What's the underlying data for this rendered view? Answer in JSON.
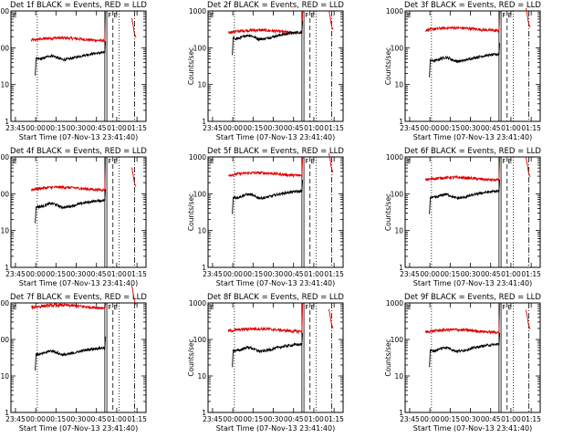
{
  "chart_data": {
    "type": "line",
    "layout": "3x3 grid",
    "y_scale": "log",
    "ylim": [
      1,
      1000
    ],
    "ylabel": "Counts/sec",
    "xlabel": "Start Time (07-Nov-13 23:41:40)",
    "x_tick_labels": [
      "23:45",
      "00:00",
      "00:15",
      "00:30",
      "00:45",
      "01:00",
      "01:15"
    ],
    "y_tick_labels": [
      "1",
      "10",
      "100",
      "1000"
    ],
    "xlim_minutes_from_start": [
      0,
      100
    ],
    "series_colors": {
      "events": "#000000",
      "lld": "#dd0000"
    },
    "annotation": "F E",
    "panels": [
      {
        "title": "Det 1f BLACK = Events, RED = LLD",
        "events_level": 50,
        "lld_level": 160
      },
      {
        "title": "Det 2f BLACK = Events, RED = LLD",
        "events_level": 180,
        "lld_level": 260
      },
      {
        "title": "Det 3f BLACK = Events, RED = LLD",
        "events_level": 45,
        "lld_level": 300
      },
      {
        "title": "Det 4f BLACK = Events, RED = LLD",
        "events_level": 45,
        "lld_level": 130
      },
      {
        "title": "Det 5f BLACK = Events, RED = LLD",
        "events_level": 80,
        "lld_level": 320
      },
      {
        "title": "Det 6f BLACK = Events, RED = LLD",
        "events_level": 80,
        "lld_level": 240
      },
      {
        "title": "Det 7f BLACK = Events, RED = LLD",
        "events_level": 40,
        "lld_level": 750
      },
      {
        "title": "Det 8f BLACK = Events, RED = LLD",
        "events_level": 50,
        "lld_level": 170
      },
      {
        "title": "Det 9f BLACK = Events, RED = LLD",
        "events_level": 50,
        "lld_level": 160
      }
    ]
  }
}
